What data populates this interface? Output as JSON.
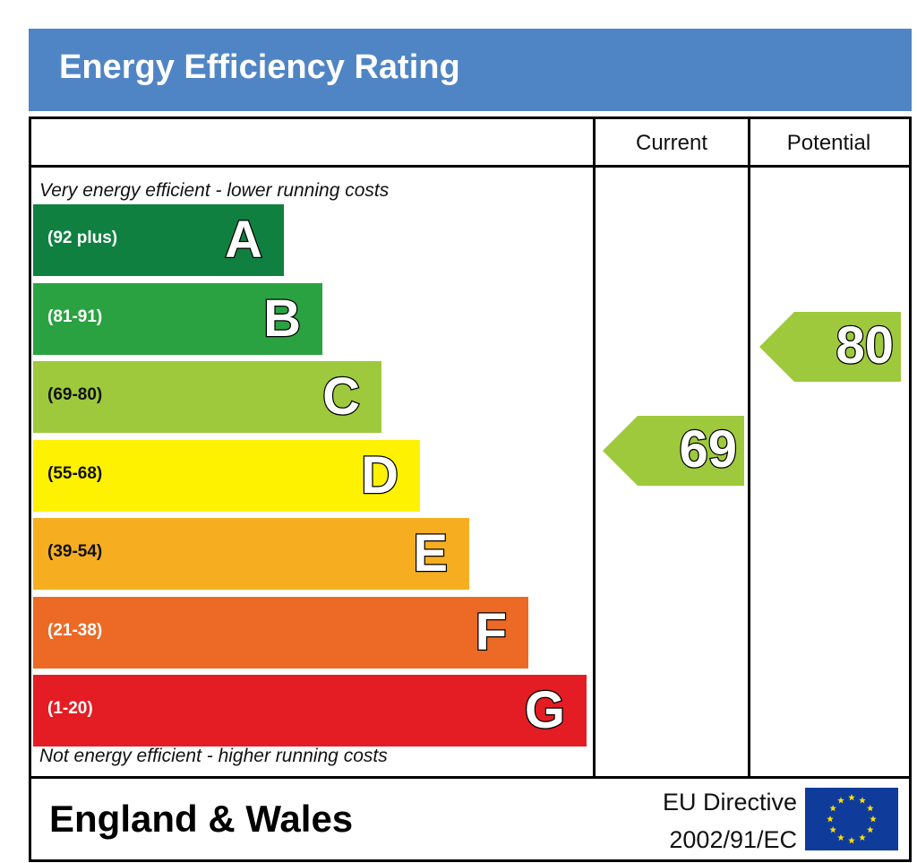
{
  "title": "Energy Efficiency Rating",
  "columns": {
    "current": "Current",
    "potential": "Potential"
  },
  "notes": {
    "top": "Very energy efficient - lower running costs",
    "bottom": "Not energy efficient - higher running costs"
  },
  "colors": {
    "title_bg": "#5085c5",
    "A": "#0f8040",
    "B": "#2ba241",
    "C": "#9ec93c",
    "D": "#fff200",
    "E": "#f6ae20",
    "F": "#ec6a25",
    "G": "#e31d23",
    "eu_blue": "#0f3c9b",
    "eu_star": "#ffdd00"
  },
  "chart_data": {
    "type": "bar",
    "categories": [
      "A",
      "B",
      "C",
      "D",
      "E",
      "F",
      "G"
    ],
    "bands": [
      {
        "letter": "A",
        "range": "(92 plus)",
        "min": 92,
        "max": 100
      },
      {
        "letter": "B",
        "range": "(81-91)",
        "min": 81,
        "max": 91
      },
      {
        "letter": "C",
        "range": "(69-80)",
        "min": 69,
        "max": 80
      },
      {
        "letter": "D",
        "range": "(55-68)",
        "min": 55,
        "max": 68
      },
      {
        "letter": "E",
        "range": "(39-54)",
        "min": 39,
        "max": 54
      },
      {
        "letter": "F",
        "range": "(21-38)",
        "min": 21,
        "max": 38
      },
      {
        "letter": "G",
        "range": "(1-20)",
        "min": 1,
        "max": 20
      }
    ],
    "current": {
      "value": "69",
      "band": "C"
    },
    "potential": {
      "value": "80",
      "band": "C"
    }
  },
  "footer": {
    "country": "England & Wales",
    "directive_line1": "EU Directive",
    "directive_line2": "2002/91/EC"
  },
  "icons": {
    "flag": "eu-flag-icon"
  }
}
